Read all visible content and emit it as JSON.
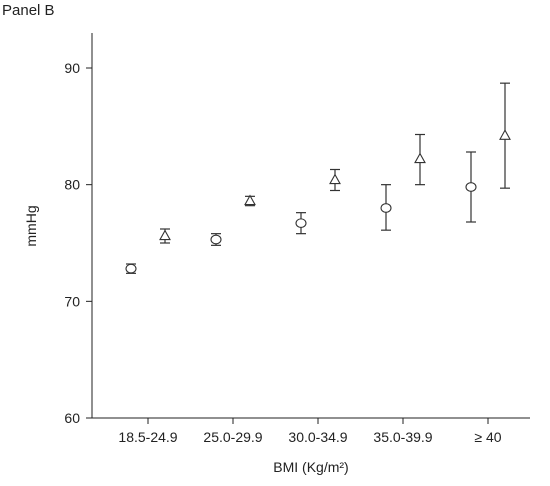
{
  "panel_label": "Panel B",
  "chart_data": {
    "type": "scatter",
    "title": "",
    "xlabel": "BMI (Kg/m²)",
    "ylabel": "mmHg",
    "ylim": [
      60,
      93
    ],
    "yticks": [
      60,
      70,
      80,
      90
    ],
    "categories": [
      "18.5-24.9",
      "25.0-29.9",
      "30.0-34.9",
      "35.0-39.9",
      "≥ 40"
    ],
    "series": [
      {
        "marker": "circle",
        "values": [
          72.8,
          75.3,
          76.7,
          78.0,
          79.8
        ],
        "lower": [
          72.4,
          74.8,
          75.8,
          76.1,
          76.8
        ],
        "upper": [
          73.2,
          75.8,
          77.6,
          80.0,
          82.8
        ]
      },
      {
        "marker": "triangle",
        "values": [
          75.6,
          78.6,
          80.4,
          82.2,
          84.2
        ],
        "lower": [
          75.0,
          78.2,
          79.5,
          80.0,
          79.7
        ],
        "upper": [
          76.2,
          79.0,
          81.3,
          84.3,
          88.7
        ]
      }
    ]
  }
}
